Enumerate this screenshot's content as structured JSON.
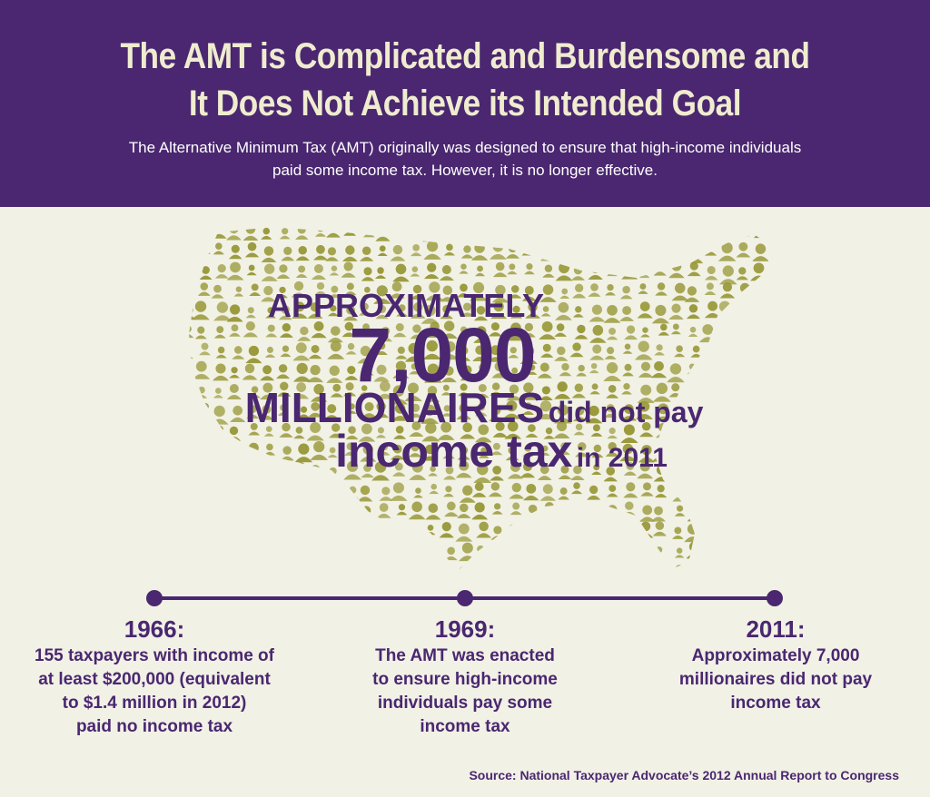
{
  "header": {
    "title_line1": "The AMT is Complicated and Burdensome and",
    "title_line2": "It Does Not Achieve its Intended Goal",
    "subtitle_line1": "The Alternative Minimum Tax (AMT) originally was designed to ensure that high-income individuals",
    "subtitle_line2": "paid some income tax. However, it is no longer effective."
  },
  "stat": {
    "line1": "APPROXIMATELY",
    "number": "7,000",
    "millionaires": "MILLIONAIRES",
    "did_not_pay": "did not pay",
    "income_tax": "income tax",
    "in_year": "in 2011"
  },
  "timeline": {
    "events": [
      {
        "year": "1966:",
        "desc": [
          "155 taxpayers with income of",
          "at least $200,000 (equivalent",
          "to $1.4 million in 2012)",
          "paid no income tax"
        ]
      },
      {
        "year": "1969:",
        "desc": [
          "The AMT was enacted",
          "to ensure high-income",
          "individuals pay some",
          "income tax"
        ]
      },
      {
        "year": "2011:",
        "desc": [
          "Approximately 7,000",
          "millionaires did not pay",
          "income tax"
        ]
      }
    ]
  },
  "source": "Source: National Taxpayer Advocate’s 2012 Annual Report to Congress",
  "colors": {
    "purple": "#4a2770",
    "olive": "#9a9a3c",
    "cream": "#efeccf",
    "background": "#f1f1e6"
  },
  "map": {
    "icon": "person-icon",
    "region": "united-states"
  }
}
